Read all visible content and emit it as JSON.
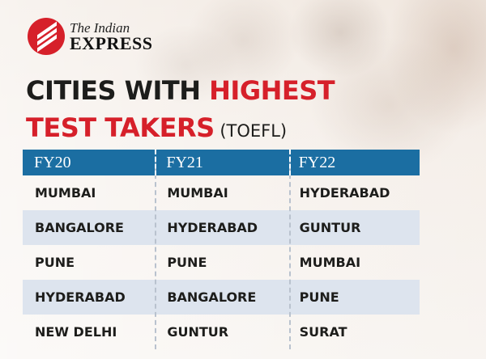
{
  "logo": {
    "line1": "The Indian",
    "line2": "EXPRESS"
  },
  "headline": {
    "part1": "CITIES WITH ",
    "part2": "HIGHEST",
    "part3": "TEST TAKERS",
    "part4": " (TOEFL)"
  },
  "table": {
    "headers": [
      "FY20",
      "FY21",
      "FY22"
    ],
    "rows": [
      [
        "MUMBAI",
        "MUMBAI",
        "HYDERABAD"
      ],
      [
        "BANGALORE",
        "HYDERABAD",
        "GUNTUR"
      ],
      [
        "PUNE",
        "PUNE",
        "MUMBAI"
      ],
      [
        "HYDERABAD",
        "BANGALORE",
        "PUNE"
      ],
      [
        "NEW DELHI",
        "GUNTUR",
        "SURAT"
      ]
    ]
  },
  "colors": {
    "brand_red": "#d6202a",
    "header_blue": "#1b6ea2",
    "row_shade": "#dde4ee"
  }
}
